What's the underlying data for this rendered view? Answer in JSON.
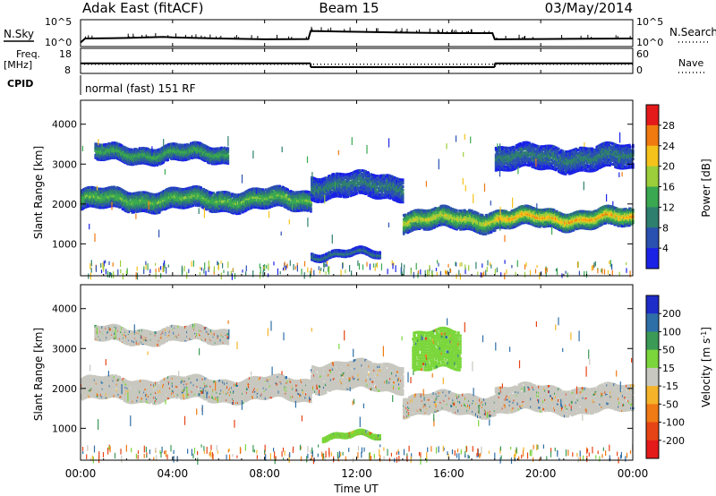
{
  "header": {
    "station": "Adak East (fitACF)",
    "beam": "Beam 15",
    "date": "03/May/2014"
  },
  "chart_data": [
    {
      "type": "line",
      "panel": "noise",
      "ylabel_left": "N.Sky",
      "ylabel_right": "N.Search",
      "y_ticks_left": [
        "10^5",
        "10^0"
      ],
      "y_ticks_right": [
        "10^5",
        "10^0"
      ],
      "x_hours": [
        0,
        0.2,
        2,
        3.6,
        4,
        6,
        8,
        9.9,
        10,
        12,
        14,
        16,
        17.9,
        18,
        20,
        24
      ],
      "sky_level": [
        0.15,
        0.3,
        0.32,
        0.36,
        0.34,
        0.3,
        0.27,
        0.28,
        0.58,
        0.55,
        0.52,
        0.5,
        0.5,
        0.27,
        0.28,
        0.3
      ]
    },
    {
      "type": "line",
      "panel": "frequency",
      "ylabel_left": "Freq.",
      "ylabel_left_unit": "[MHz]",
      "ylabel_right": "Nave",
      "y_ticks_left": [
        "18",
        "8"
      ],
      "y_ticks_right": [
        "60",
        "0"
      ],
      "freq_mhz": [
        {
          "x_start": 0,
          "x_end": 10,
          "value": 12
        },
        {
          "x_start": 10,
          "x_end": 18,
          "value": 10.5
        },
        {
          "x_start": 18,
          "x_end": 24,
          "value": 12
        }
      ],
      "nave": 22
    },
    {
      "type": "table",
      "panel": "cpid",
      "label": "CPID",
      "value": "normal (fast) 151 RF"
    },
    {
      "type": "heatmap",
      "panel": "power",
      "ylabel": "Slant Range [km]",
      "y_ticks": [
        "1000",
        "2000",
        "3000",
        "4000"
      ],
      "ylim": [
        200,
        4600
      ],
      "xlim": [
        0,
        24
      ],
      "colorbar_label": "Power [dB]",
      "colorbar_ticks": [
        "4",
        "8",
        "12",
        "16",
        "20",
        "24",
        "28"
      ],
      "colorbar_colors": [
        "#1a22e6",
        "#2a50b0",
        "#2f7f6e",
        "#3aa850",
        "#9ccd3a",
        "#f5c21b",
        "#f07a10",
        "#e41a1a"
      ],
      "bands": [
        {
          "t0": 0,
          "t1": 10,
          "r0": 1900,
          "r1": 2400,
          "peak": 16
        },
        {
          "t0": 0.6,
          "t1": 6.4,
          "r0": 3100,
          "r1": 3500,
          "peak": 14
        },
        {
          "t0": 10,
          "t1": 14,
          "r0": 2200,
          "r1": 2800,
          "peak": 10
        },
        {
          "t0": 14,
          "t1": 18,
          "r0": 1400,
          "r1": 1900,
          "peak": 20
        },
        {
          "t0": 18,
          "t1": 24,
          "r0": 1450,
          "r1": 1900,
          "peak": 24
        },
        {
          "t0": 10,
          "t1": 13,
          "r0": 700,
          "r1": 850,
          "peak": 10
        },
        {
          "t0": 18,
          "t1": 24,
          "r0": 2900,
          "r1": 3500,
          "peak": 10
        }
      ]
    },
    {
      "type": "heatmap",
      "panel": "velocity",
      "ylabel": "Slant Range [km]",
      "y_ticks": [
        "1000",
        "2000",
        "3000",
        "4000"
      ],
      "ylim": [
        200,
        4600
      ],
      "xlim": [
        0,
        24
      ],
      "colorbar_label": "Velocity [m s^-1]",
      "colorbar_ticks": [
        "200",
        "100",
        "50",
        "15",
        "-15",
        "-50",
        "-100",
        "-200"
      ],
      "colorbar_colors": [
        "#1e2cc8",
        "#2f6fa8",
        "#3b9a55",
        "#7ad63a",
        "#c8c8c0",
        "#f5b32a",
        "#f07a14",
        "#e64414",
        "#e41a1a"
      ],
      "bands": [
        {
          "t0": 0,
          "t1": 10,
          "r0": 1750,
          "r1": 2300,
          "v": 0
        },
        {
          "t0": 10,
          "t1": 14,
          "r0": 2000,
          "r1": 2700,
          "v": 0
        },
        {
          "t0": 14,
          "t1": 18,
          "r0": 1400,
          "r1": 1900,
          "v": 0
        },
        {
          "t0": 18,
          "t1": 24,
          "r0": 1450,
          "r1": 2100,
          "v": 0
        },
        {
          "t0": 10.5,
          "t1": 13,
          "r0": 780,
          "r1": 880,
          "v": 30
        },
        {
          "t0": 0.6,
          "t1": 6.4,
          "r0": 3200,
          "r1": 3550,
          "v": 0
        },
        {
          "t0": 14.4,
          "t1": 16.5,
          "r0": 2500,
          "r1": 3500,
          "v": 30
        }
      ]
    }
  ],
  "x_axis": {
    "ticks": [
      "00:00",
      "04:00",
      "08:00",
      "12:00",
      "16:00",
      "20:00",
      "00:00"
    ],
    "tick_hours": [
      0,
      4,
      8,
      12,
      16,
      20,
      24
    ],
    "label": "Time UT"
  }
}
